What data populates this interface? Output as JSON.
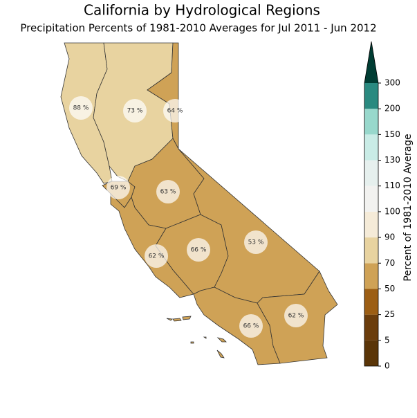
{
  "title": "California by Hydrological Regions",
  "subtitle": "Precipitation Percents of 1981-2010 Averages for Jul 2011 - Jun 2012",
  "regions": [
    {
      "value": 88,
      "label": "88 %"
    },
    {
      "value": 73,
      "label": "73 %"
    },
    {
      "value": 64,
      "label": "64 %"
    },
    {
      "value": 69,
      "label": "69 %"
    },
    {
      "value": 63,
      "label": "63 %"
    },
    {
      "value": 62,
      "label": "62 %"
    },
    {
      "value": 66,
      "label": "66 %"
    },
    {
      "value": 53,
      "label": "53 %"
    },
    {
      "value": 66,
      "label": "66 %"
    },
    {
      "value": 62,
      "label": "62 %"
    }
  ],
  "colorbar": {
    "label": "Percent of 1981-2010 Average",
    "ticks": [
      0,
      5,
      25,
      50,
      70,
      90,
      100,
      110,
      130,
      150,
      200,
      300
    ],
    "colors": [
      "#5a3508",
      "#6b3d0c",
      "#9c5e14",
      "#cfa256",
      "#e8d3a0",
      "#f5ebd8",
      "#f2f2f0",
      "#e6f0ee",
      "#c9ece6",
      "#98d8cc",
      "#2a8a80",
      "#003d33"
    ]
  }
}
